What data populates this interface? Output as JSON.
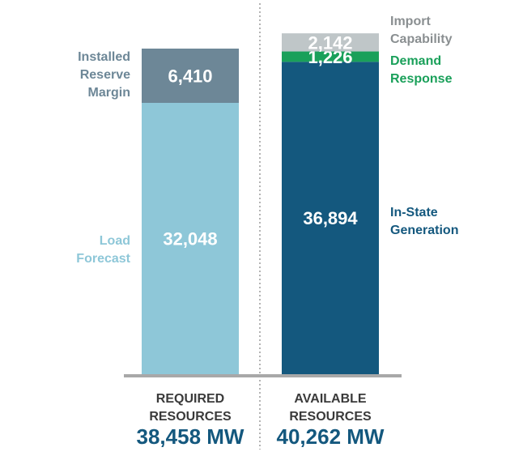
{
  "chart_data": {
    "type": "bar",
    "stacked": true,
    "unit": "MW",
    "categories": [
      "REQUIRED RESOURCES",
      "AVAILABLE RESOURCES"
    ],
    "bars": [
      {
        "caption_lines": [
          "REQUIRED",
          "RESOURCES"
        ],
        "total_label": "38,458 MW",
        "segments": [
          {
            "value": 32048,
            "value_label": "32,048",
            "label_lines": [
              "Load",
              "Forecast"
            ],
            "label_side": "left",
            "color": "#8ec7d8",
            "label_color": "#8ec7d8"
          },
          {
            "value": 6410,
            "value_label": "6,410",
            "label_lines": [
              "Installed",
              "Reserve",
              "Margin"
            ],
            "label_side": "left",
            "color": "#6d8797",
            "label_color": "#6d8797"
          }
        ]
      },
      {
        "caption_lines": [
          "AVAILABLE",
          "RESOURCES"
        ],
        "total_label": "40,262 MW",
        "segments": [
          {
            "value": 36894,
            "value_label": "36,894",
            "label_lines": [
              "In-State",
              "Generation"
            ],
            "label_side": "right",
            "color": "#14587e",
            "label_color": "#14587e"
          },
          {
            "value": 1226,
            "value_label": "1,226",
            "label_lines": [
              "Demand",
              "Response"
            ],
            "label_side": "right",
            "color": "#1aa05a",
            "label_color": "#1aa05a"
          },
          {
            "value": 2142,
            "value_label": "2,142",
            "label_lines": [
              "Import",
              "Capability"
            ],
            "label_side": "right",
            "color": "#bfc6c8",
            "label_color": "#8a8f91"
          }
        ]
      }
    ],
    "grid": false,
    "legend": "none"
  }
}
